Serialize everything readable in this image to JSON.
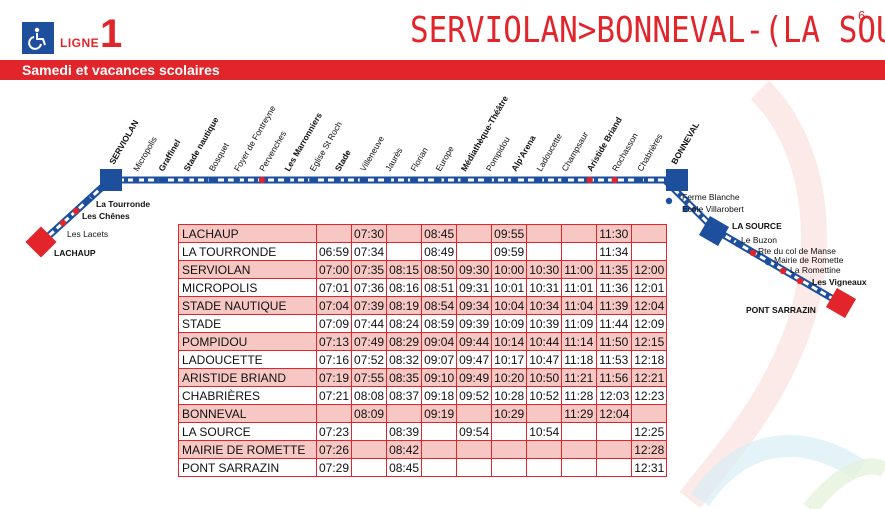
{
  "header": {
    "ligne_label": "LIGNE",
    "ligne_number": "1",
    "route_title": "SERVIOLAN>BONNEVAL-(LA SOURCE)",
    "page_number": "6",
    "icon": "wheelchair-icon"
  },
  "band": {
    "text": "Samedi et vacances scolaires"
  },
  "colors": {
    "accent": "#e1252b",
    "line_blue": "#1d4f9c",
    "row_shade": "#f7c7c3"
  },
  "map": {
    "top_stops": [
      "Micropolis",
      "Graffinel",
      "Stade nautique",
      "Bosquet",
      "Foyer de Fontreyne",
      "Pervenches",
      "Les Marronniers",
      "Eglise St Roch",
      "Stade",
      "Villeneuve",
      "Jaurès",
      "Florian",
      "Europe",
      "Médiathèque-Théâtre",
      "Pompidou",
      "Alp'Arena",
      "Ladoucette",
      "Champsaur",
      "Aristide Briand",
      "Rochasson",
      "Chabrières"
    ],
    "terminus_left_top": "SERVIOLAN",
    "terminus_right_top": "BONNEVAL",
    "left_branch": [
      "La Tourronde",
      "Les Chênes",
      "Les Lacets"
    ],
    "terminus_left_bottom": "LACHAUP",
    "right_upper": [
      "Ferme Blanche",
      "École Villarobert"
    ],
    "la_source": "LA SOURCE",
    "right_lower": [
      "Le Buzon",
      "Rte du col de Manse",
      "Mairie de Romette",
      "La Romettine",
      "Les Vigneaux"
    ],
    "terminus_right_bottom": "PONT SARRAZIN"
  },
  "timetable": {
    "rows": [
      {
        "stop": "LACHAUP",
        "times": [
          "",
          "07:30",
          "",
          "08:45",
          "",
          "09:55",
          "",
          "",
          "11:30",
          ""
        ]
      },
      {
        "stop": "LA TOURRONDE",
        "times": [
          "06:59",
          "07:34",
          "",
          "08:49",
          "",
          "09:59",
          "",
          "",
          "11:34",
          ""
        ]
      },
      {
        "stop": "SERVIOLAN",
        "times": [
          "07:00",
          "07:35",
          "08:15",
          "08:50",
          "09:30",
          "10:00",
          "10:30",
          "11:00",
          "11:35",
          "12:00"
        ]
      },
      {
        "stop": "MICROPOLIS",
        "times": [
          "07:01",
          "07:36",
          "08:16",
          "08:51",
          "09:31",
          "10:01",
          "10:31",
          "11:01",
          "11:36",
          "12:01"
        ]
      },
      {
        "stop": "STADE NAUTIQUE",
        "times": [
          "07:04",
          "07:39",
          "08:19",
          "08:54",
          "09:34",
          "10:04",
          "10:34",
          "11:04",
          "11:39",
          "12:04"
        ]
      },
      {
        "stop": "STADE",
        "times": [
          "07:09",
          "07:44",
          "08:24",
          "08:59",
          "09:39",
          "10:09",
          "10:39",
          "11:09",
          "11:44",
          "12:09"
        ]
      },
      {
        "stop": "POMPIDOU",
        "times": [
          "07:13",
          "07:49",
          "08:29",
          "09:04",
          "09:44",
          "10:14",
          "10:44",
          "11:14",
          "11:50",
          "12:15"
        ]
      },
      {
        "stop": "LADOUCETTE",
        "times": [
          "07:16",
          "07:52",
          "08:32",
          "09:07",
          "09:47",
          "10:17",
          "10:47",
          "11:18",
          "11:53",
          "12:18"
        ]
      },
      {
        "stop": "ARISTIDE BRIAND",
        "times": [
          "07:19",
          "07:55",
          "08:35",
          "09:10",
          "09:49",
          "10:20",
          "10:50",
          "11:21",
          "11:56",
          "12:21"
        ]
      },
      {
        "stop": "CHABRIÈRES",
        "times": [
          "07:21",
          "08:08",
          "08:37",
          "09:18",
          "09:52",
          "10:28",
          "10:52",
          "11:28",
          "12:03",
          "12:23"
        ]
      },
      {
        "stop": "BONNEVAL",
        "times": [
          "",
          "08:09",
          "",
          "09:19",
          "",
          "10:29",
          "",
          "11:29",
          "12:04",
          ""
        ]
      },
      {
        "stop": "LA SOURCE",
        "times": [
          "07:23",
          "",
          "08:39",
          "",
          "09:54",
          "",
          "10:54",
          "",
          "",
          "12:25"
        ]
      },
      {
        "stop": "MAIRIE DE ROMETTE",
        "times": [
          "07:26",
          "",
          "08:42",
          "",
          "",
          "",
          "",
          "",
          "",
          "12:28"
        ]
      },
      {
        "stop": "PONT SARRAZIN",
        "times": [
          "07:29",
          "",
          "08:45",
          "",
          "",
          "",
          "",
          "",
          "",
          "12:31"
        ]
      }
    ]
  }
}
